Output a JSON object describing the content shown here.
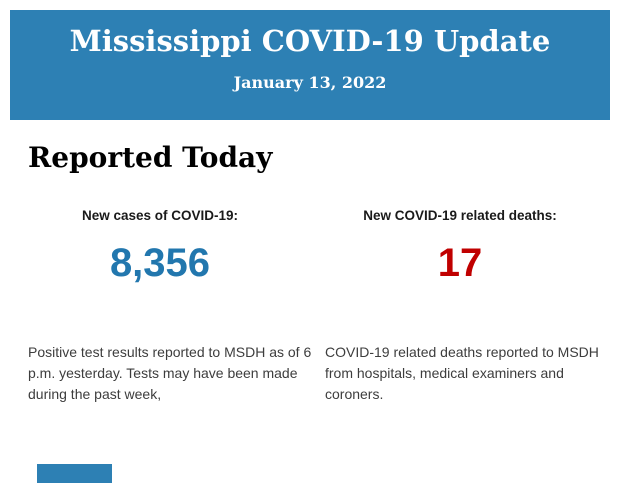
{
  "header": {
    "title": "Mississippi COVID-19 Update",
    "date": "January 13, 2022",
    "bg_color": "#2d80b4",
    "text_color": "#ffffff"
  },
  "section": {
    "heading": "Reported Today"
  },
  "stats": [
    {
      "label": "New cases of COVID-19:",
      "value": "8,356",
      "value_color": "#2277ae",
      "description": "Positive test results reported to MSDH as of 6 p.m. yesterday. Tests may have been made during the past week,"
    },
    {
      "label": "New COVID-19 related deaths:",
      "value": "17",
      "value_color": "#c00000",
      "description": "COVID-19 related deaths reported to MSDH from hospitals, medical examiners and coroners."
    }
  ],
  "footer": {
    "partial_block_color": "#2d80b4"
  }
}
